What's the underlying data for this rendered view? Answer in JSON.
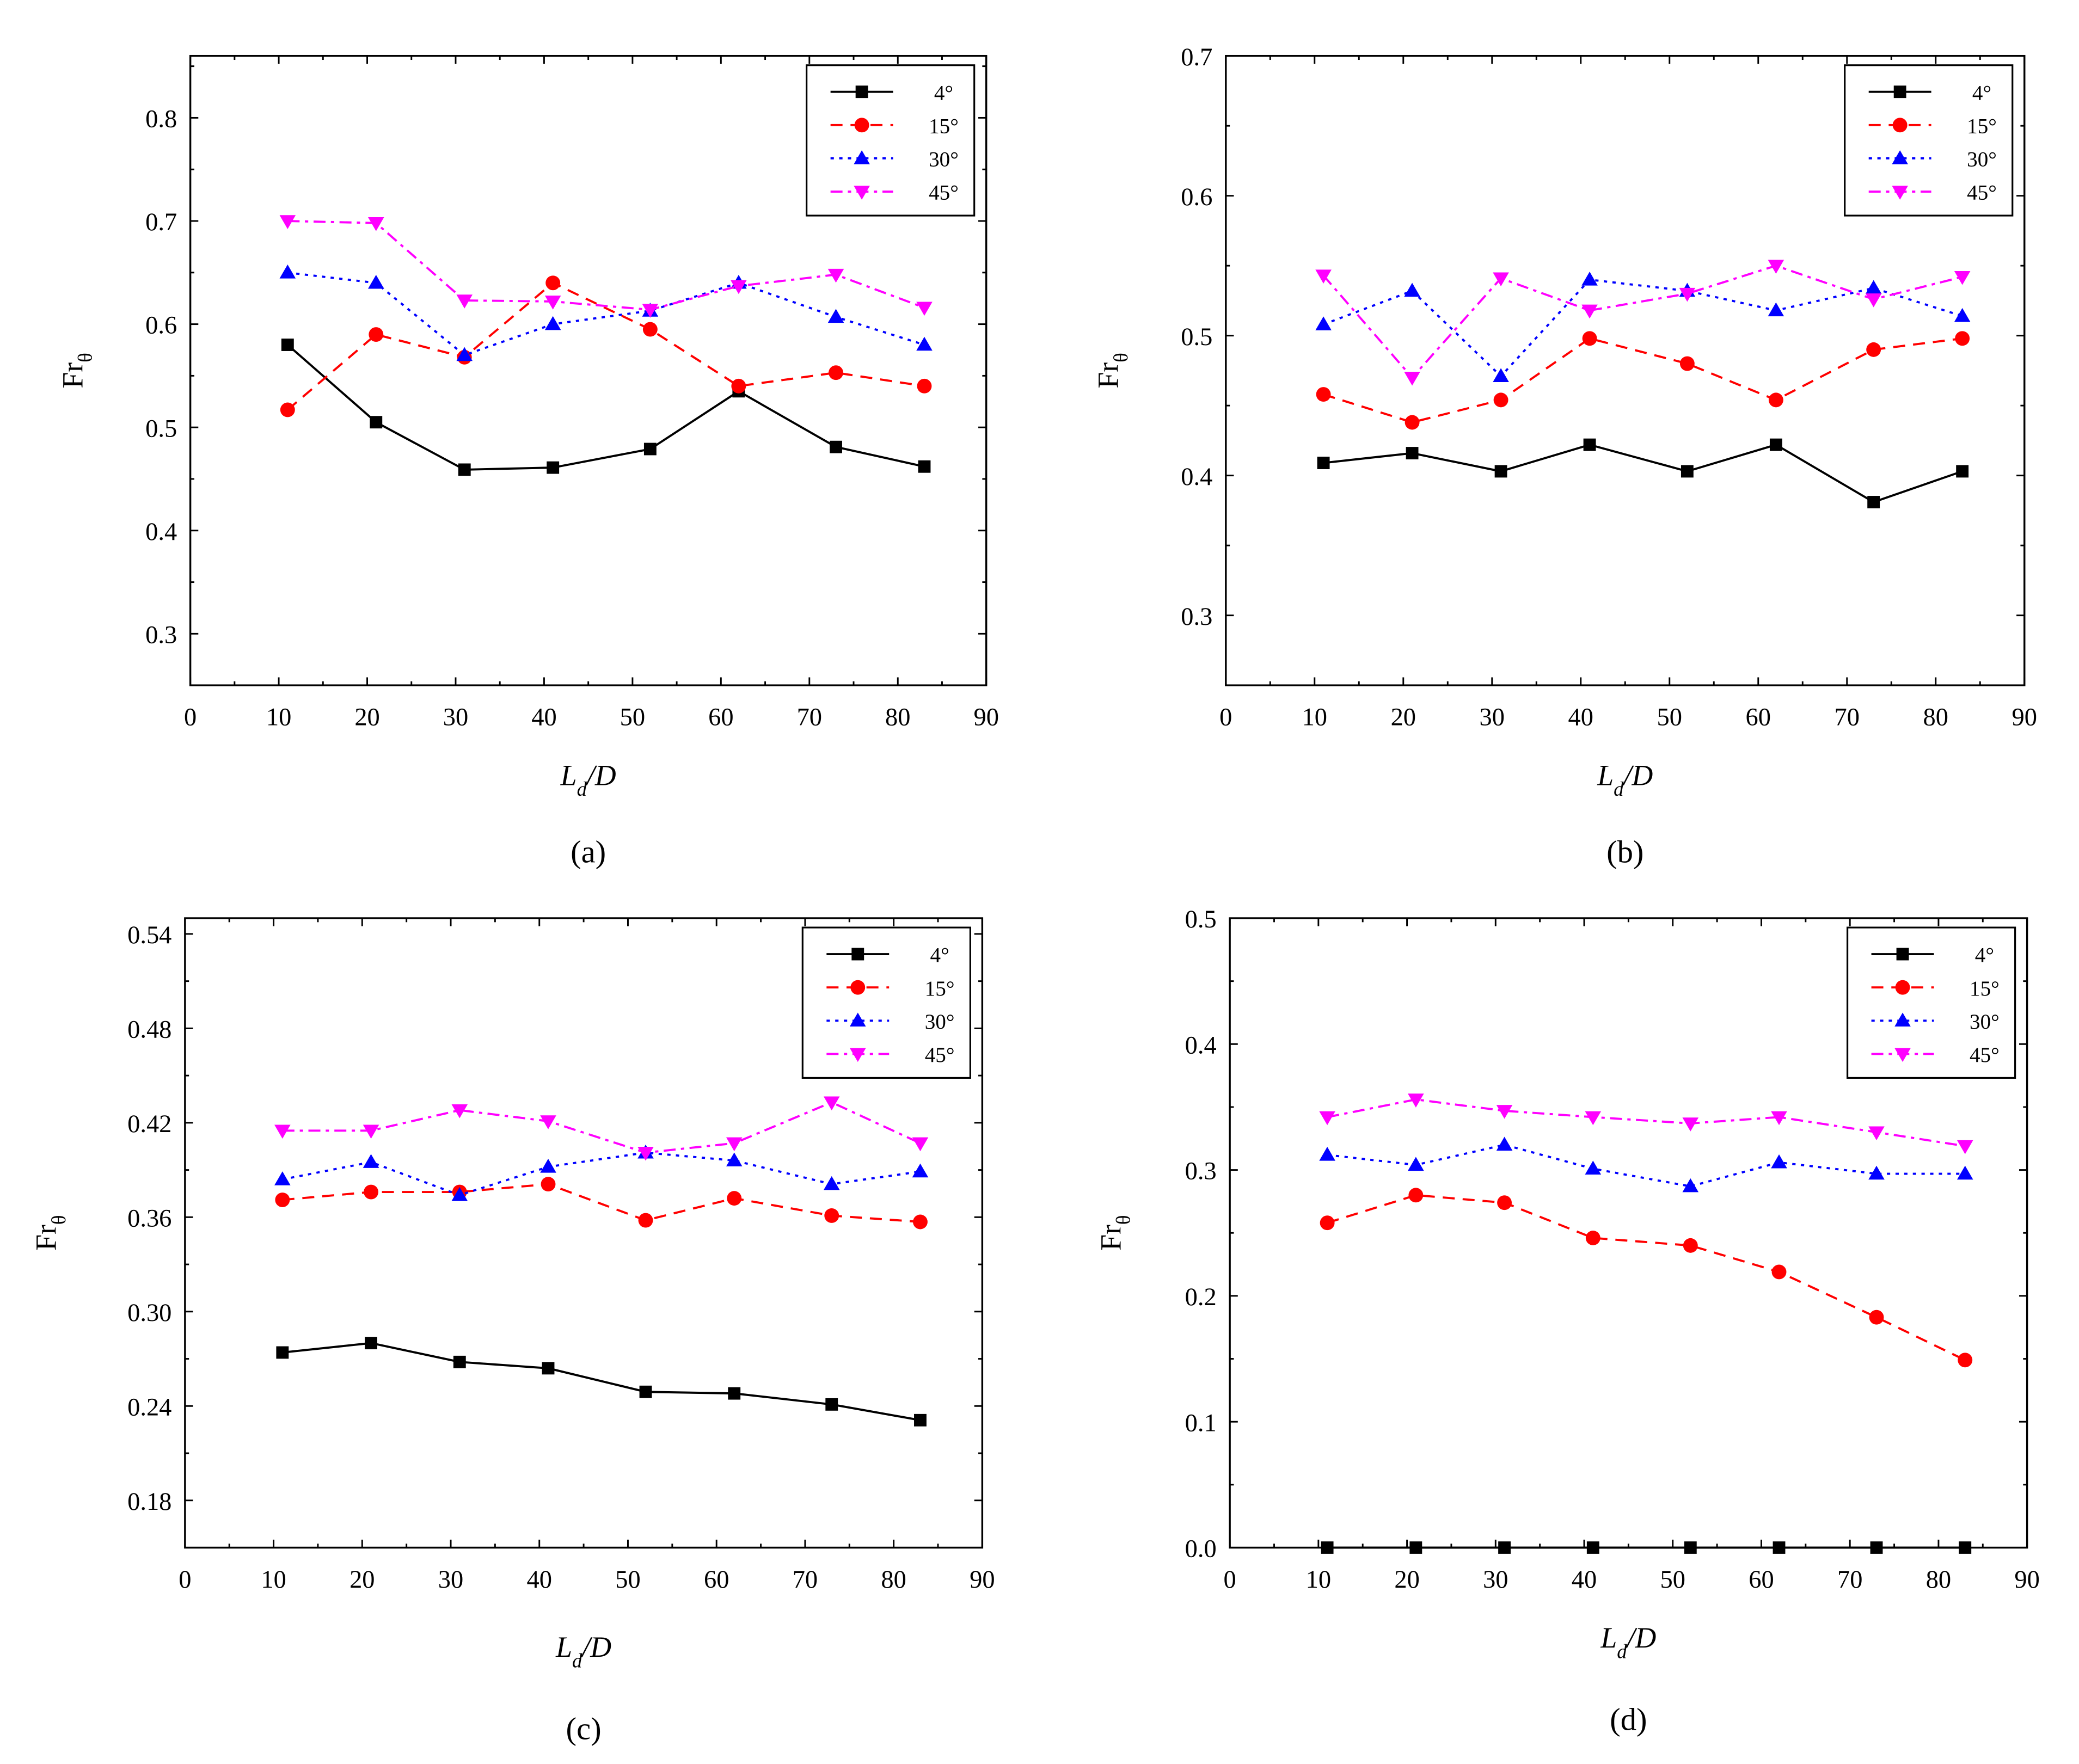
{
  "figure": {
    "background": "#ffffff"
  },
  "legend": [
    {
      "name": "4°",
      "color": "#000000",
      "marker": "square",
      "dash": "solid"
    },
    {
      "name": "15°",
      "color": "#ff0000",
      "marker": "circle",
      "dash": "dashed"
    },
    {
      "name": "30°",
      "color": "#0000ff",
      "marker": "triangle-up",
      "dash": "dotted"
    },
    {
      "name": "45°",
      "color": "#ff00ff",
      "marker": "triangle-down",
      "dash": "dash-dot"
    }
  ],
  "chart_data": [
    {
      "panel": "(a)",
      "type": "line",
      "xlabel_main": "L",
      "xlabel_sub": "d",
      "xlabel_tail": "/D",
      "ylabel_main": "Fr",
      "ylabel_sub": "θ",
      "xlim": [
        0,
        90
      ],
      "xticks": [
        0,
        10,
        20,
        30,
        40,
        50,
        60,
        70,
        80,
        90
      ],
      "ylim": [
        0.25,
        0.86
      ],
      "yticks": [
        0.3,
        0.4,
        0.5,
        0.6,
        0.7,
        0.8
      ],
      "ydecimals": 1,
      "legend_position": "top-right",
      "grid": false,
      "x": [
        11,
        21,
        31,
        41,
        52,
        62,
        73,
        83
      ],
      "series": [
        {
          "name": "4°",
          "values": [
            0.58,
            0.505,
            0.459,
            0.461,
            0.479,
            0.535,
            0.481,
            0.462
          ]
        },
        {
          "name": "15°",
          "values": [
            0.517,
            0.59,
            0.568,
            0.64,
            0.595,
            0.54,
            0.553,
            0.54
          ]
        },
        {
          "name": "30°",
          "values": [
            0.65,
            0.64,
            0.57,
            0.6,
            0.613,
            0.64,
            0.607,
            0.58
          ]
        },
        {
          "name": "45°",
          "values": [
            0.7,
            0.698,
            0.623,
            0.622,
            0.614,
            0.637,
            0.648,
            0.616
          ]
        }
      ]
    },
    {
      "panel": "(b)",
      "type": "line",
      "xlabel_main": "L",
      "xlabel_sub": "d",
      "xlabel_tail": "/D",
      "ylabel_main": "Fr",
      "ylabel_sub": "θ",
      "xlim": [
        0,
        90
      ],
      "xticks": [
        0,
        10,
        20,
        30,
        40,
        50,
        60,
        70,
        80,
        90
      ],
      "ylim": [
        0.25,
        0.7
      ],
      "yticks": [
        0.3,
        0.4,
        0.5,
        0.6,
        0.7
      ],
      "ydecimals": 1,
      "legend_position": "top-right",
      "grid": false,
      "x": [
        11,
        21,
        31,
        41,
        52,
        62,
        73,
        83
      ],
      "series": [
        {
          "name": "4°",
          "values": [
            0.409,
            0.416,
            0.403,
            0.422,
            0.403,
            0.422,
            0.381,
            0.403
          ]
        },
        {
          "name": "15°",
          "values": [
            0.458,
            0.438,
            0.454,
            0.498,
            0.48,
            0.454,
            0.49,
            0.498
          ]
        },
        {
          "name": "30°",
          "values": [
            0.508,
            0.532,
            0.471,
            0.54,
            0.532,
            0.518,
            0.534,
            0.514
          ]
        },
        {
          "name": "45°",
          "values": [
            0.543,
            0.47,
            0.541,
            0.518,
            0.53,
            0.55,
            0.526,
            0.542
          ]
        }
      ]
    },
    {
      "panel": "(c)",
      "type": "line",
      "xlabel_main": "L",
      "xlabel_sub": "d",
      "xlabel_tail": "/D",
      "ylabel_main": "Fr",
      "ylabel_sub": "θ",
      "xlim": [
        0,
        90
      ],
      "xticks": [
        0,
        10,
        20,
        30,
        40,
        50,
        60,
        70,
        80,
        90
      ],
      "ylim": [
        0.15,
        0.55
      ],
      "yticks": [
        0.18,
        0.24,
        0.3,
        0.36,
        0.42,
        0.48,
        0.54
      ],
      "ydecimals": 2,
      "legend_position": "top-right",
      "grid": false,
      "x": [
        11,
        21,
        31,
        41,
        52,
        62,
        73,
        83
      ],
      "series": [
        {
          "name": "4°",
          "values": [
            0.274,
            0.28,
            0.268,
            0.264,
            0.249,
            0.248,
            0.241,
            0.231
          ]
        },
        {
          "name": "15°",
          "values": [
            0.371,
            0.376,
            0.376,
            0.381,
            0.358,
            0.372,
            0.361,
            0.357
          ]
        },
        {
          "name": "30°",
          "values": [
            0.384,
            0.395,
            0.374,
            0.392,
            0.401,
            0.396,
            0.381,
            0.389
          ]
        },
        {
          "name": "45°",
          "values": [
            0.415,
            0.415,
            0.428,
            0.421,
            0.401,
            0.407,
            0.433,
            0.407
          ]
        }
      ]
    },
    {
      "panel": "(d)",
      "type": "line",
      "xlabel_main": "L",
      "xlabel_sub": "d",
      "xlabel_tail": "/D",
      "ylabel_main": "Fr",
      "ylabel_sub": "θ",
      "xlim": [
        0,
        90
      ],
      "xticks": [
        0,
        10,
        20,
        30,
        40,
        50,
        60,
        70,
        80,
        90
      ],
      "ylim": [
        0,
        0.5
      ],
      "yticks": [
        0.0,
        0.1,
        0.2,
        0.3,
        0.4,
        0.5
      ],
      "ydecimals": 1,
      "legend_position": "top-right",
      "grid": false,
      "x": [
        11,
        21,
        31,
        41,
        52,
        62,
        73,
        83
      ],
      "series": [
        {
          "name": "4°",
          "values": [
            0.0,
            0.0,
            0.0,
            0.0,
            0.0,
            0.0,
            0.0,
            0.0
          ]
        },
        {
          "name": "15°",
          "values": [
            0.258,
            0.28,
            0.274,
            0.246,
            0.24,
            0.219,
            0.183,
            0.149
          ]
        },
        {
          "name": "30°",
          "values": [
            0.312,
            0.304,
            0.32,
            0.301,
            0.287,
            0.306,
            0.297,
            0.297
          ]
        },
        {
          "name": "45°",
          "values": [
            0.342,
            0.356,
            0.347,
            0.342,
            0.337,
            0.342,
            0.33,
            0.319
          ]
        }
      ]
    }
  ]
}
